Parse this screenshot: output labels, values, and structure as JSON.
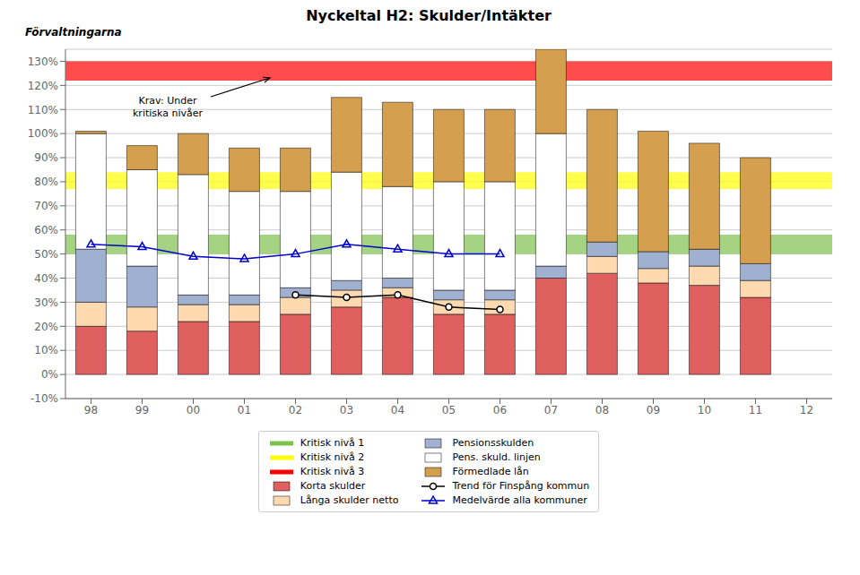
{
  "chart_data": {
    "type": "bar",
    "stacked": true,
    "title": "Nyckeltal H2: Skulder/Intäkter",
    "categories": [
      "98",
      "99",
      "00",
      "01",
      "02",
      "03",
      "04",
      "05",
      "06",
      "07",
      "08",
      "09",
      "10",
      "11",
      "12"
    ],
    "series": [
      {
        "name": "Korta skulder",
        "color": "#E06060",
        "values": [
          0.2,
          0.18,
          0.22,
          0.22,
          0.25,
          0.28,
          0.32,
          0.25,
          0.25,
          0.4,
          0.42,
          0.38,
          0.37,
          0.32,
          0.0
        ]
      },
      {
        "name": "Långa skulder netto",
        "color": "#FFDAB0",
        "values": [
          0.1,
          0.1,
          0.07,
          0.07,
          0.07,
          0.07,
          0.04,
          0.06,
          0.06,
          0.0,
          0.07,
          0.06,
          0.08,
          0.07,
          0.0
        ]
      },
      {
        "name": "Pensionsskulden",
        "color": "#A0B0D0",
        "values": [
          0.22,
          0.17,
          0.04,
          0.04,
          0.04,
          0.04,
          0.04,
          0.04,
          0.04,
          0.05,
          0.06,
          0.07,
          0.07,
          0.07,
          0.0
        ]
      },
      {
        "name": "Pens. skuld. linjen",
        "color": "#FFFFFF",
        "values": [
          0.48,
          0.4,
          0.5,
          0.43,
          0.4,
          0.45,
          0.38,
          0.45,
          0.45,
          0.55,
          0.0,
          0.0,
          0.0,
          0.0,
          0.0
        ]
      },
      {
        "name": "Förmedlade lån",
        "color": "#D4A050",
        "values": [
          0.01,
          0.1,
          0.17,
          0.18,
          0.18,
          0.31,
          0.35,
          0.3,
          0.3,
          0.35,
          0.55,
          0.5,
          0.44,
          0.44,
          0.0
        ]
      },
      {
        "name": "Trend för Finspång kommun",
        "type": "line",
        "color": "#000000",
        "marker": "circle",
        "values": [
          null,
          null,
          null,
          null,
          0.33,
          0.32,
          0.33,
          0.28,
          0.27,
          null,
          null,
          null,
          null,
          null,
          null
        ]
      },
      {
        "name": "Medelvärde alla kommuner",
        "type": "line",
        "color": "#0000CC",
        "marker": "triangle",
        "values": [
          0.54,
          0.53,
          0.49,
          0.48,
          0.5,
          0.54,
          0.52,
          0.5,
          0.5,
          null,
          null,
          null,
          null,
          null,
          null
        ]
      }
    ],
    "bands": [
      {
        "name": "Kritisk nivå 1",
        "color": "#7DC24B",
        "range": [
          0.5,
          0.58
        ]
      },
      {
        "name": "Kritisk nivå 2",
        "color": "#FFFF00",
        "range": [
          0.77,
          0.84
        ]
      },
      {
        "name": "Kritisk nivå 3",
        "color": "#FF0000",
        "range": [
          1.22,
          1.3
        ]
      }
    ],
    "ylim": [
      -0.1,
      1.35
    ],
    "yticks": [
      {
        "value": -0.1,
        "label": "-10%"
      },
      {
        "value": 0.0,
        "label": "0%"
      },
      {
        "value": 0.1,
        "label": "10%"
      },
      {
        "value": 0.2,
        "label": "20%"
      },
      {
        "value": 0.3,
        "label": "30%"
      },
      {
        "value": 0.4,
        "label": "40%"
      },
      {
        "value": 0.5,
        "label": "50%"
      },
      {
        "value": 0.6,
        "label": "60%"
      },
      {
        "value": 0.7,
        "label": "70%"
      },
      {
        "value": 0.8,
        "label": "80%"
      },
      {
        "value": 0.9,
        "label": "90%"
      },
      {
        "value": 1.0,
        "label": "100%"
      },
      {
        "value": 1.1,
        "label": "110%"
      },
      {
        "value": 1.2,
        "label": "120%"
      },
      {
        "value": 1.3,
        "label": "130%"
      }
    ],
    "grid": "y",
    "legend": "bottom",
    "annotations": [
      "Krav: Under\nkritiska nivåer",
      "Förvaltningarna"
    ]
  }
}
